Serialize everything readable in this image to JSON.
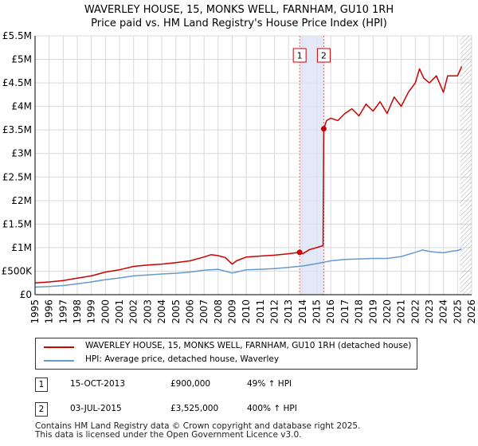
{
  "header": {
    "title_line1": "WAVERLEY HOUSE, 15, MONKS WELL, FARNHAM, GU10 1RH",
    "title_line2": "Price paid vs. HM Land Registry's House Price Index (HPI)"
  },
  "colors": {
    "price_line": "#cc0000",
    "hpi_line": "#6699cc",
    "grid": "#d9d9d9",
    "sale_band": "#dde4f5",
    "marker_line": "#e06666"
  },
  "legend": {
    "price_label": "WAVERLEY HOUSE, 15, MONKS WELL, FARNHAM, GU10 1RH (detached house)",
    "hpi_label": "HPI: Average price, detached house, Waverley"
  },
  "sales": [
    {
      "num": "1",
      "date": "15-OCT-2013",
      "price": "£900,000",
      "hpi_change": "49% ↑ HPI"
    },
    {
      "num": "2",
      "date": "03-JUL-2015",
      "price": "£3,525,000",
      "hpi_change": "400% ↑ HPI"
    }
  ],
  "footer": {
    "line1": "Contains HM Land Registry data © Crown copyright and database right 2025.",
    "line2": "This data is licensed under the Open Government Licence v3.0."
  },
  "chart_data": {
    "type": "line",
    "title": "WAVERLEY HOUSE, 15, MONKS WELL, FARNHAM, GU10 1RH — Price paid vs. HM Land Registry's House Price Index (HPI)",
    "xlabel": "",
    "ylabel": "",
    "xlim": [
      1995,
      2026
    ],
    "ylim": [
      0,
      5500000
    ],
    "grid": true,
    "x_ticks": [
      1995,
      1996,
      1997,
      1998,
      1999,
      2000,
      2001,
      2002,
      2003,
      2004,
      2005,
      2006,
      2007,
      2008,
      2009,
      2010,
      2011,
      2012,
      2013,
      2014,
      2015,
      2016,
      2017,
      2018,
      2019,
      2020,
      2021,
      2022,
      2023,
      2024,
      2025,
      2026
    ],
    "y_ticks": [
      {
        "value": 0,
        "label": "£0"
      },
      {
        "value": 500000,
        "label": "£500K"
      },
      {
        "value": 1000000,
        "label": "£1M"
      },
      {
        "value": 1500000,
        "label": "£1.5M"
      },
      {
        "value": 2000000,
        "label": "£2M"
      },
      {
        "value": 2500000,
        "label": "£2.5M"
      },
      {
        "value": 3000000,
        "label": "£3M"
      },
      {
        "value": 3500000,
        "label": "£3.5M"
      },
      {
        "value": 4000000,
        "label": "£4M"
      },
      {
        "value": 4500000,
        "label": "£4.5M"
      },
      {
        "value": 5000000,
        "label": "£5M"
      },
      {
        "value": 5500000,
        "label": "£5.5M"
      }
    ],
    "sale_markers": [
      {
        "label": "1",
        "x": 2013.79,
        "y": 900000
      },
      {
        "label": "2",
        "x": 2015.5,
        "y": 3525000
      }
    ],
    "future_hatch_from": 2025.2,
    "series": [
      {
        "name": "WAVERLEY HOUSE, 15, MONKS WELL, FARNHAM, GU10 1RH (detached house)",
        "color": "#cc0000",
        "x": [
          1995.0,
          1996.0,
          1997.0,
          1998.0,
          1999.0,
          2000.0,
          2001.0,
          2002.0,
          2003.0,
          2004.0,
          2005.0,
          2006.0,
          2007.0,
          2007.5,
          2008.0,
          2008.5,
          2009.0,
          2009.3,
          2010.0,
          2011.0,
          2012.0,
          2013.0,
          2013.79,
          2014.0,
          2014.5,
          2015.0,
          2015.45,
          2015.5,
          2015.7,
          2016.0,
          2016.5,
          2017.0,
          2017.5,
          2018.0,
          2018.5,
          2019.0,
          2019.5,
          2020.0,
          2020.5,
          2021.0,
          2021.5,
          2022.0,
          2022.3,
          2022.6,
          2023.0,
          2023.5,
          2024.0,
          2024.3,
          2024.6,
          2025.0,
          2025.3
        ],
        "values": [
          250000,
          270000,
          300000,
          350000,
          400000,
          480000,
          530000,
          600000,
          630000,
          650000,
          680000,
          720000,
          800000,
          850000,
          830000,
          790000,
          650000,
          720000,
          800000,
          820000,
          840000,
          870000,
          900000,
          870000,
          960000,
          1000000,
          1040000,
          3525000,
          3700000,
          3750000,
          3700000,
          3850000,
          3950000,
          3800000,
          4050000,
          3900000,
          4100000,
          3850000,
          4200000,
          4000000,
          4300000,
          4500000,
          4800000,
          4600000,
          4500000,
          4650000,
          4300000,
          4650000,
          4650000,
          4650000,
          4850000
        ]
      },
      {
        "name": "HPI: Average price, detached house, Waverley",
        "color": "#6699cc",
        "x": [
          1995.0,
          1996.0,
          1997.0,
          1998.0,
          1999.0,
          2000.0,
          2001.0,
          2002.0,
          2003.0,
          2004.0,
          2005.0,
          2006.0,
          2007.0,
          2008.0,
          2009.0,
          2009.3,
          2010.0,
          2011.0,
          2012.0,
          2013.0,
          2014.0,
          2015.0,
          2016.0,
          2017.0,
          2018.0,
          2019.0,
          2020.0,
          2021.0,
          2022.0,
          2022.5,
          2023.0,
          2023.5,
          2024.0,
          2024.5,
          2025.0,
          2025.3
        ],
        "values": [
          160000,
          175000,
          195000,
          230000,
          270000,
          320000,
          355000,
          400000,
          420000,
          440000,
          455000,
          480000,
          520000,
          540000,
          460000,
          480000,
          530000,
          540000,
          555000,
          580000,
          610000,
          660000,
          720000,
          750000,
          760000,
          770000,
          770000,
          810000,
          900000,
          950000,
          920000,
          900000,
          890000,
          920000,
          940000,
          970000
        ]
      }
    ]
  }
}
